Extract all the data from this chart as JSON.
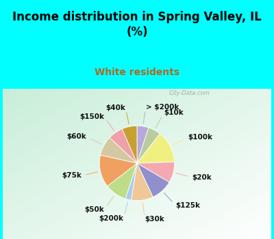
{
  "title": "Income distribution in Spring Valley, IL\n(%)",
  "subtitle": "White residents",
  "background_color": "#00FFFF",
  "chart_bg_start": "#C8EED8",
  "chart_bg_end": "#FFFFFF",
  "watermark": "City-Data.com",
  "slices": [
    {
      "label": "> $200k",
      "value": 5.0,
      "color": "#B8A8DC"
    },
    {
      "label": "$10k",
      "value": 5.5,
      "color": "#B8CCA0"
    },
    {
      "label": "$100k",
      "value": 14.0,
      "color": "#F0F080"
    },
    {
      "label": "$20k",
      "value": 9.0,
      "color": "#F4A8B0"
    },
    {
      "label": "$125k",
      "value": 9.5,
      "color": "#9090CC"
    },
    {
      "label": "$30k",
      "value": 9.5,
      "color": "#F0C898"
    },
    {
      "label": "$200k",
      "value": 2.5,
      "color": "#A8CCEE"
    },
    {
      "label": "$50k",
      "value": 9.5,
      "color": "#BEDD88"
    },
    {
      "label": "$75k",
      "value": 14.0,
      "color": "#F0A060"
    },
    {
      "label": "$60k",
      "value": 8.5,
      "color": "#D4C8A0"
    },
    {
      "label": "$150k",
      "value": 6.5,
      "color": "#F0A0A8"
    },
    {
      "label": "$40k",
      "value": 6.5,
      "color": "#C8A030"
    }
  ],
  "label_fontsize": 7.5,
  "title_fontsize": 12,
  "subtitle_fontsize": 10,
  "title_color": "#000000",
  "subtitle_color": "#B06820"
}
